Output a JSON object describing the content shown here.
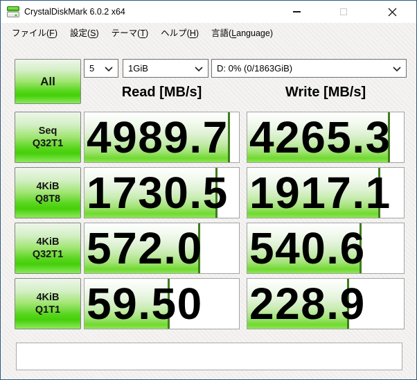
{
  "window": {
    "title": "CrystalDiskMark 6.0.2 x64"
  },
  "menu": {
    "items": [
      {
        "pre": "ファイル(",
        "accel": "F",
        "post": ")"
      },
      {
        "pre": "設定(",
        "accel": "S",
        "post": ")"
      },
      {
        "pre": "テーマ(",
        "accel": "T",
        "post": ")"
      },
      {
        "pre": "ヘルプ(",
        "accel": "H",
        "post": ")"
      },
      {
        "pre": "言語(",
        "accel": "L",
        "post": "anguage)"
      }
    ]
  },
  "controls": {
    "all_label": "All",
    "test_count": "5",
    "test_size": "1GiB",
    "target_drive": "D: 0% (0/1863GiB)"
  },
  "headers": {
    "read": "Read [MB/s]",
    "write": "Write [MB/s]"
  },
  "results": {
    "rows": [
      {
        "label_line1": "Seq",
        "label_line2": "Q32T1",
        "read": {
          "value": "4989.7",
          "bar_percent": 94
        },
        "write": {
          "value": "4265.3",
          "bar_percent": 91
        }
      },
      {
        "label_line1": "4KiB",
        "label_line2": "Q8T8",
        "read": {
          "value": "1730.5",
          "bar_percent": 86
        },
        "write": {
          "value": "1917.1",
          "bar_percent": 85
        }
      },
      {
        "label_line1": "4KiB",
        "label_line2": "Q32T1",
        "read": {
          "value": "572.0",
          "bar_percent": 75
        },
        "write": {
          "value": "540.6",
          "bar_percent": 73
        }
      },
      {
        "label_line1": "4KiB",
        "label_line2": "Q1T1",
        "read": {
          "value": "59.50",
          "bar_percent": 55
        },
        "write": {
          "value": "228.9",
          "bar_percent": 65
        }
      }
    ]
  },
  "comment": {
    "value": ""
  },
  "colors": {
    "theme_green": "#45cf0a",
    "bar_end_line_green": "#3e7c1c",
    "window_border": "#2a5880"
  }
}
